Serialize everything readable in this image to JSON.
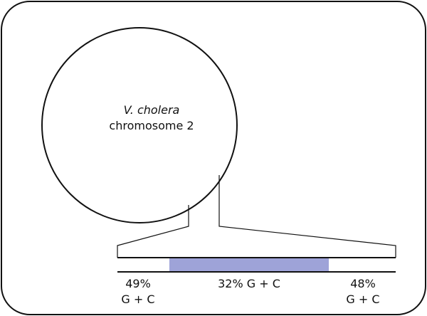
{
  "circle": {
    "species": "V. cholera",
    "label": "chromosome 2"
  },
  "regions": [
    {
      "line1": "49%",
      "line2": "G + C"
    },
    {
      "label": "32% G + C"
    },
    {
      "line1": "48%",
      "line2": "G + C"
    }
  ]
}
